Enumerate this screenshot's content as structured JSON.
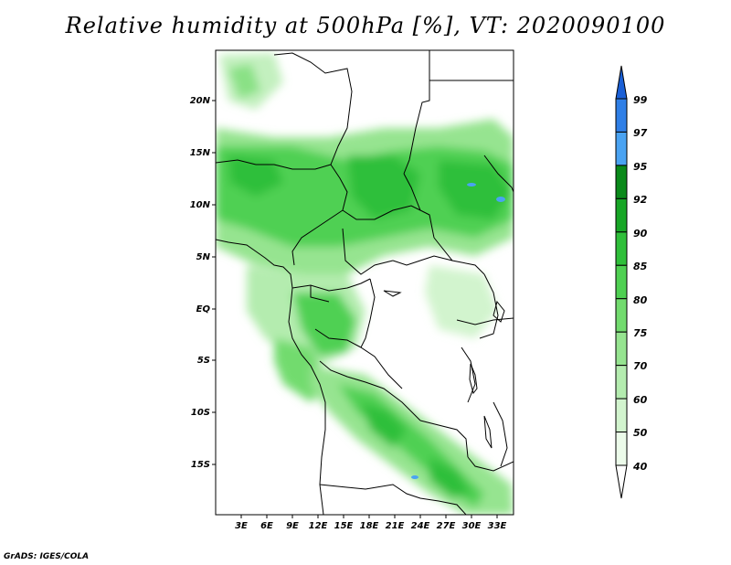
{
  "title": "Relative humidity at 500hPa [%], VT: 2020090100",
  "credit": "GrADS: IGES/COLA",
  "map": {
    "lat_labels": [
      "20N",
      "15N",
      "10N",
      "5N",
      "EQ",
      "5S",
      "10S",
      "15S"
    ],
    "lon_labels": [
      "3E",
      "6E",
      "9E",
      "12E",
      "15E",
      "18E",
      "21E",
      "24E",
      "27E",
      "30E",
      "33E"
    ]
  },
  "legend": {
    "labels": [
      "99",
      "97",
      "95",
      "92",
      "90",
      "85",
      "80",
      "75",
      "70",
      "60",
      "50",
      "40"
    ],
    "colors": [
      "#1a5fd6",
      "#2f7fe6",
      "#4aa3f2",
      "#0a8a1a",
      "#17a626",
      "#2fbf3a",
      "#4fd052",
      "#72db6e",
      "#96e490",
      "#b4ecaf",
      "#d2f4ce",
      "#ecfbea"
    ]
  }
}
